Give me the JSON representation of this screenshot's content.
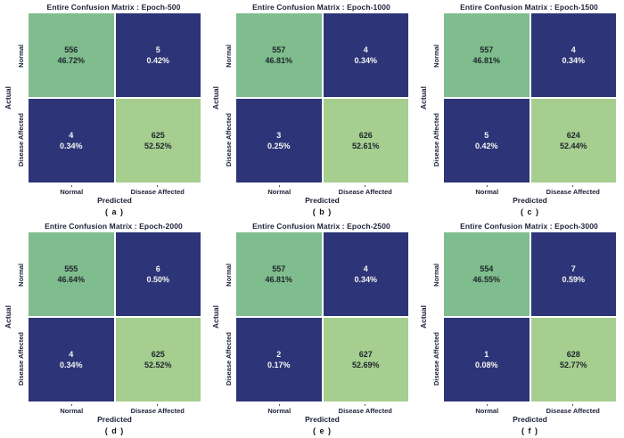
{
  "figure": {
    "axis": {
      "x_label": "Predicted",
      "y_label": "Actual"
    },
    "classes": [
      "Normal",
      "Disease Affected"
    ],
    "colors": {
      "true_normal_cell": "#7fbd8e",
      "error_cell": "#2d3478",
      "true_disease_cell": "#a5ce8f",
      "text_dark": "#1b2038",
      "text_light": "#f5f5f0"
    },
    "panels": [
      {
        "title": "Entire Confusion Matrix : Epoch-500",
        "caption": "( a )",
        "cells": [
          {
            "count": "556",
            "percent": "46.72%"
          },
          {
            "count": "5",
            "percent": "0.42%"
          },
          {
            "count": "4",
            "percent": "0.34%"
          },
          {
            "count": "625",
            "percent": "52.52%"
          }
        ]
      },
      {
        "title": "Entire Confusion Matrix : Epoch-1000",
        "caption": "( b )",
        "cells": [
          {
            "count": "557",
            "percent": "46.81%"
          },
          {
            "count": "4",
            "percent": "0.34%"
          },
          {
            "count": "3",
            "percent": "0.25%"
          },
          {
            "count": "626",
            "percent": "52.61%"
          }
        ]
      },
      {
        "title": "Entire Confusion Matrix : Epoch-1500",
        "caption": "( c )",
        "cells": [
          {
            "count": "557",
            "percent": "46.81%"
          },
          {
            "count": "4",
            "percent": "0.34%"
          },
          {
            "count": "5",
            "percent": "0.42%"
          },
          {
            "count": "624",
            "percent": "52.44%"
          }
        ]
      },
      {
        "title": "Entire Confusion Matrix : Epoch-2000",
        "caption": "( d )",
        "cells": [
          {
            "count": "555",
            "percent": "46.64%"
          },
          {
            "count": "6",
            "percent": "0.50%"
          },
          {
            "count": "4",
            "percent": "0.34%"
          },
          {
            "count": "625",
            "percent": "52.52%"
          }
        ]
      },
      {
        "title": "Entire Confusion Matrix : Epoch-2500",
        "caption": "( e )",
        "cells": [
          {
            "count": "557",
            "percent": "46.81%"
          },
          {
            "count": "4",
            "percent": "0.34%"
          },
          {
            "count": "2",
            "percent": "0.17%"
          },
          {
            "count": "627",
            "percent": "52.69%"
          }
        ]
      },
      {
        "title": "Entire Confusion Matrix : Epoch-3000",
        "caption": "( f )",
        "cells": [
          {
            "count": "554",
            "percent": "46.55%"
          },
          {
            "count": "7",
            "percent": "0.59%"
          },
          {
            "count": "1",
            "percent": "0.08%"
          },
          {
            "count": "628",
            "percent": "52.77%"
          }
        ]
      }
    ]
  },
  "chart_data": [
    {
      "type": "heatmap",
      "title": "Entire Confusion Matrix : Epoch-500",
      "caption": "( a )",
      "xlabel": "Predicted",
      "ylabel": "Actual",
      "x_categories": [
        "Normal",
        "Disease Affected"
      ],
      "y_categories": [
        "Normal",
        "Disease Affected"
      ],
      "values": [
        [
          556,
          5
        ],
        [
          4,
          625
        ]
      ],
      "percents": [
        [
          "46.72%",
          "0.42%"
        ],
        [
          "0.34%",
          "52.52%"
        ]
      ]
    },
    {
      "type": "heatmap",
      "title": "Entire Confusion Matrix : Epoch-1000",
      "caption": "( b )",
      "xlabel": "Predicted",
      "ylabel": "Actual",
      "x_categories": [
        "Normal",
        "Disease Affected"
      ],
      "y_categories": [
        "Normal",
        "Disease Affected"
      ],
      "values": [
        [
          557,
          4
        ],
        [
          3,
          626
        ]
      ],
      "percents": [
        [
          "46.81%",
          "0.34%"
        ],
        [
          "0.25%",
          "52.61%"
        ]
      ]
    },
    {
      "type": "heatmap",
      "title": "Entire Confusion Matrix : Epoch-1500",
      "caption": "( c )",
      "xlabel": "Predicted",
      "ylabel": "Actual",
      "x_categories": [
        "Normal",
        "Disease Affected"
      ],
      "y_categories": [
        "Normal",
        "Disease Affected"
      ],
      "values": [
        [
          557,
          4
        ],
        [
          5,
          624
        ]
      ],
      "percents": [
        [
          "46.81%",
          "0.34%"
        ],
        [
          "0.42%",
          "52.44%"
        ]
      ]
    },
    {
      "type": "heatmap",
      "title": "Entire Confusion Matrix : Epoch-2000",
      "caption": "( d )",
      "xlabel": "Predicted",
      "ylabel": "Actual",
      "x_categories": [
        "Normal",
        "Disease Affected"
      ],
      "y_categories": [
        "Normal",
        "Disease Affected"
      ],
      "values": [
        [
          555,
          6
        ],
        [
          4,
          625
        ]
      ],
      "percents": [
        [
          "46.64%",
          "0.50%"
        ],
        [
          "0.34%",
          "52.52%"
        ]
      ]
    },
    {
      "type": "heatmap",
      "title": "Entire Confusion Matrix : Epoch-2500",
      "caption": "( e )",
      "xlabel": "Predicted",
      "ylabel": "Actual",
      "x_categories": [
        "Normal",
        "Disease Affected"
      ],
      "y_categories": [
        "Normal",
        "Disease Affected"
      ],
      "values": [
        [
          557,
          4
        ],
        [
          2,
          627
        ]
      ],
      "percents": [
        [
          "46.81%",
          "0.34%"
        ],
        [
          "0.17%",
          "52.69%"
        ]
      ]
    },
    {
      "type": "heatmap",
      "title": "Entire Confusion Matrix : Epoch-3000",
      "caption": "( f )",
      "xlabel": "Predicted",
      "ylabel": "Actual",
      "x_categories": [
        "Normal",
        "Disease Affected"
      ],
      "y_categories": [
        "Normal",
        "Disease Affected"
      ],
      "values": [
        [
          554,
          7
        ],
        [
          1,
          628
        ]
      ],
      "percents": [
        [
          "46.55%",
          "0.59%"
        ],
        [
          "0.08%",
          "52.77%"
        ]
      ]
    }
  ]
}
